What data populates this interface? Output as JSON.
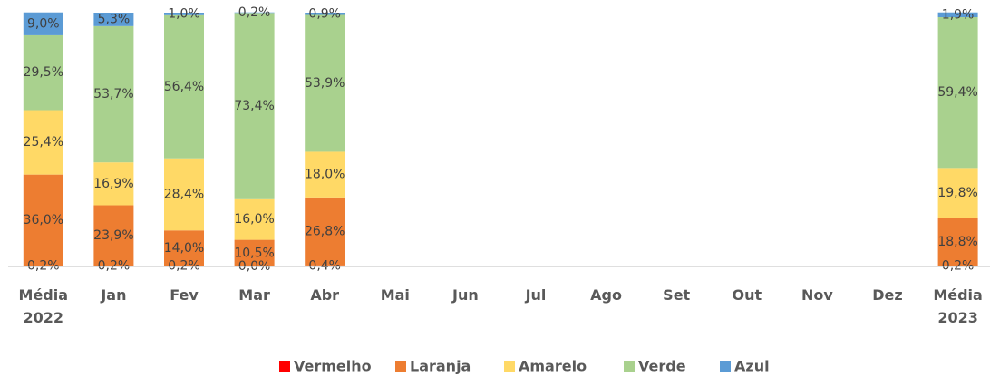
{
  "chart_data": {
    "type": "stacked_bar",
    "categories": [
      "Média 2022",
      "Jan",
      "Fev",
      "Mar",
      "Abr",
      "Mai",
      "Jun",
      "Jul",
      "Ago",
      "Set",
      "Out",
      "Nov",
      "Dez",
      "Média 2023"
    ],
    "ylim": [
      0,
      100
    ],
    "legend": "bottom",
    "series": [
      {
        "name": "Vermelho",
        "color": "#ff0000",
        "values": [
          0.2,
          0.2,
          0.2,
          0.0,
          0.4,
          null,
          null,
          null,
          null,
          null,
          null,
          null,
          null,
          0.2
        ],
        "value_labels": [
          "0,2%",
          "0,2%",
          "0,2%",
          "0,0%",
          "0,4%",
          null,
          null,
          null,
          null,
          null,
          null,
          null,
          null,
          "0,2%"
        ]
      },
      {
        "name": "Laranja",
        "color": "#ed7d31",
        "values": [
          36.0,
          23.9,
          14.0,
          10.5,
          26.8,
          null,
          null,
          null,
          null,
          null,
          null,
          null,
          null,
          18.8
        ],
        "value_labels": [
          "36,0%",
          "23,9%",
          "14,0%",
          "10,5%",
          "26,8%",
          null,
          null,
          null,
          null,
          null,
          null,
          null,
          null,
          "18,8%"
        ]
      },
      {
        "name": "Amarelo",
        "color": "#ffd966",
        "values": [
          25.4,
          16.9,
          28.4,
          16.0,
          18.0,
          null,
          null,
          null,
          null,
          null,
          null,
          null,
          null,
          19.8
        ],
        "value_labels": [
          "25,4%",
          "16,9%",
          "28,4%",
          "16,0%",
          "18,0%",
          null,
          null,
          null,
          null,
          null,
          null,
          null,
          null,
          "19,8%"
        ]
      },
      {
        "name": "Verde",
        "color": "#a9d18e",
        "values": [
          29.5,
          53.7,
          56.4,
          73.4,
          53.9,
          null,
          null,
          null,
          null,
          null,
          null,
          null,
          null,
          59.4
        ],
        "value_labels": [
          "29,5%",
          "53,7%",
          "56,4%",
          "73,4%",
          "53,9%",
          null,
          null,
          null,
          null,
          null,
          null,
          null,
          null,
          "59,4%"
        ]
      },
      {
        "name": "Azul",
        "color": "#5b9bd5",
        "values": [
          9.0,
          5.3,
          1.0,
          0.2,
          0.9,
          null,
          null,
          null,
          null,
          null,
          null,
          null,
          null,
          1.9
        ],
        "value_labels": [
          "9,0%",
          "5,3%",
          "1,0%",
          "0,2%",
          "0,9%",
          null,
          null,
          null,
          null,
          null,
          null,
          null,
          null,
          "1,9%"
        ]
      }
    ]
  }
}
